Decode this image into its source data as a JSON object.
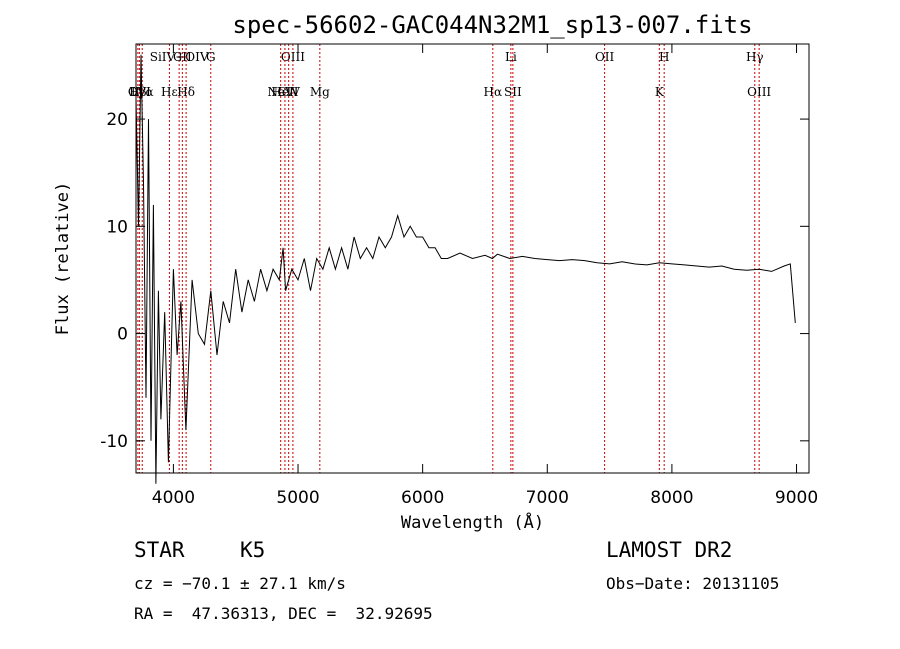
{
  "chart_data": {
    "type": "line",
    "title": "spec-56602-GAC044N32M1_sp13-007.fits",
    "xlabel": "Wavelength (Å)",
    "ylabel": "Flux (relative)",
    "xlim": [
      3700,
      9100
    ],
    "ylim": [
      -13,
      27
    ],
    "x_ticks": [
      4000,
      5000,
      6000,
      7000,
      8000,
      9000
    ],
    "y_ticks": [
      -10,
      0,
      10,
      20
    ],
    "line_color": "#000000",
    "marker_color": "#cc0000",
    "series": [
      {
        "x": [
          3700,
          3720,
          3740,
          3760,
          3780,
          3800,
          3820,
          3840,
          3860,
          3880,
          3900,
          3930,
          3960,
          4000,
          4030,
          4060,
          4100,
          4150,
          4200,
          4250,
          4300,
          4350,
          4400,
          4450,
          4500,
          4550,
          4600,
          4650,
          4700,
          4750,
          4800,
          4850,
          4880,
          4900,
          4950,
          5000,
          5050,
          5100,
          5150,
          5200,
          5250,
          5300,
          5350,
          5400,
          5450,
          5500,
          5550,
          5600,
          5650,
          5700,
          5750,
          5800,
          5850,
          5900,
          5950,
          6000,
          6050,
          6100,
          6150,
          6200,
          6300,
          6400,
          6500,
          6560,
          6600,
          6700,
          6800,
          6900,
          7000,
          7100,
          7200,
          7300,
          7400,
          7500,
          7600,
          7700,
          7800,
          7900,
          8000,
          8100,
          8200,
          8300,
          8400,
          8500,
          8600,
          8700,
          8800,
          8900,
          8950,
          8990
        ],
        "values": [
          22,
          10,
          26,
          14,
          -6,
          20,
          -10,
          12,
          -14,
          4,
          -8,
          2,
          -12,
          6,
          -2,
          3,
          -9,
          5,
          0,
          -1,
          4,
          -2,
          3,
          1,
          6,
          2,
          5,
          3,
          6,
          4,
          6,
          5,
          8,
          4,
          6,
          5,
          7,
          4,
          7,
          6,
          8,
          6,
          8,
          6,
          9,
          7,
          8,
          7,
          9,
          8,
          9,
          11,
          9,
          10,
          9,
          9,
          8,
          8,
          7,
          7,
          7.5,
          7,
          7.3,
          7.0,
          7.4,
          7.0,
          7.2,
          7.0,
          6.9,
          6.8,
          6.9,
          6.8,
          6.6,
          6.5,
          6.7,
          6.5,
          6.4,
          6.6,
          6.5,
          6.4,
          6.3,
          6.2,
          6.3,
          6.0,
          5.9,
          6.0,
          5.8,
          6.3,
          6.5,
          1
        ]
      }
    ],
    "lines": [
      {
        "label": "Hβ",
        "wavelength": 3715,
        "row": 1
      },
      {
        "label": "OVI",
        "wavelength": 3727,
        "row": 1
      },
      {
        "label": "Lyα",
        "wavelength": 3750,
        "row": 1
      },
      {
        "label": "Hε",
        "wavelength": 3968,
        "row": 1
      },
      {
        "label": "SiIV+OIV",
        "wavelength": 4046,
        "row": 0
      },
      {
        "label": "CII",
        "wavelength": 4072,
        "row": 0
      },
      {
        "label": "Hδ",
        "wavelength": 4102,
        "row": 1
      },
      {
        "label": "G",
        "wavelength": 4300,
        "row": 0
      },
      {
        "label": "OIII",
        "wavelength": 4959,
        "row": 0
      },
      {
        "label": "NeV",
        "wavelength": 4861,
        "row": 1
      },
      {
        "label": "HeII",
        "wavelength": 4895,
        "row": 1
      },
      {
        "label": "CIV",
        "wavelength": 4925,
        "row": 1
      },
      {
        "label": "Mg",
        "wavelength": 5175,
        "row": 1
      },
      {
        "label": "Hα",
        "wavelength": 6563,
        "row": 1
      },
      {
        "label": "Li",
        "wavelength": 6708,
        "row": 0
      },
      {
        "label": "SII",
        "wavelength": 6724,
        "row": 1
      },
      {
        "label": "OII",
        "wavelength": 7460,
        "row": 0
      },
      {
        "label": "K",
        "wavelength": 7899,
        "row": 1
      },
      {
        "label": "H",
        "wavelength": 7938,
        "row": 0
      },
      {
        "label": "Hγ",
        "wavelength": 8665,
        "row": 0
      },
      {
        "label": "OIII",
        "wavelength": 8700,
        "row": 1
      }
    ]
  },
  "info": {
    "class": "STAR",
    "subclass": "K5",
    "survey": "LAMOST DR2",
    "cz": "cz = −70.1 ± 27.1 km/s",
    "obs_date": "Obs−Date: 20131105",
    "coords": "RA =  47.36313, DEC =  32.92695"
  }
}
